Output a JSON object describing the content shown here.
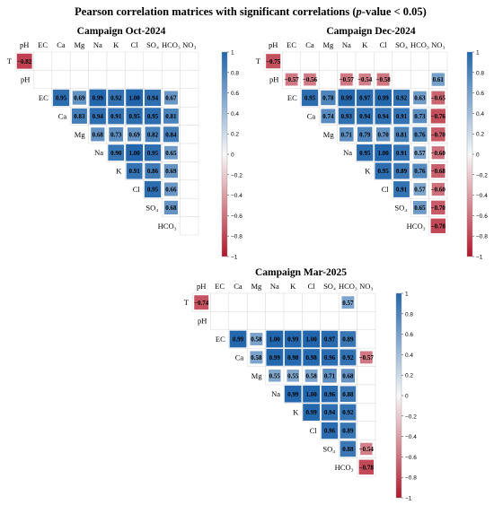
{
  "figure": {
    "title": "Pearson correlation matrices with significant correlations (p-value < 0.05)",
    "title_parts": [
      "Pearson correlation matrices with significant correlations (",
      "p",
      "-value < 0.05)"
    ]
  },
  "colors": {
    "positive_max": "#2166ac",
    "midpoint": "#f7f7f7",
    "negative_max": "#b2182b",
    "grid": "#d9d9d9"
  },
  "chart_data": [
    {
      "type": "heatmap",
      "title": "Campaign Oct-2024",
      "variables": [
        "T",
        "pH",
        "EC",
        "Ca",
        "Mg",
        "Na",
        "K",
        "Cl",
        "SO4",
        "HCO3",
        "NO3"
      ],
      "variable_labels": [
        "T",
        "pH",
        "EC",
        "Ca",
        "Mg",
        "Na",
        "K",
        "Cl",
        "SO₄",
        "HCO₃",
        "NO₃"
      ],
      "colorbar": {
        "min": -1,
        "max": 1,
        "ticks": [
          1,
          0.8,
          0.6,
          0.4,
          0.2,
          0,
          -0.2,
          -0.4,
          -0.6,
          -0.8,
          -1
        ]
      },
      "cells": [
        [
          0,
          1,
          -0.82
        ],
        [
          2,
          3,
          0.95
        ],
        [
          2,
          4,
          0.69
        ],
        [
          2,
          5,
          0.99
        ],
        [
          2,
          6,
          0.92
        ],
        [
          2,
          7,
          1.0
        ],
        [
          2,
          8,
          0.94
        ],
        [
          2,
          9,
          0.67
        ],
        [
          3,
          4,
          0.83
        ],
        [
          3,
          5,
          0.94
        ],
        [
          3,
          6,
          0.91
        ],
        [
          3,
          7,
          0.95
        ],
        [
          3,
          8,
          0.95
        ],
        [
          3,
          9,
          0.81
        ],
        [
          4,
          5,
          0.68
        ],
        [
          4,
          6,
          0.73
        ],
        [
          4,
          7,
          0.69
        ],
        [
          4,
          8,
          0.82
        ],
        [
          4,
          9,
          0.84
        ],
        [
          5,
          6,
          0.9
        ],
        [
          5,
          7,
          1.0
        ],
        [
          5,
          8,
          0.95
        ],
        [
          5,
          9,
          0.65
        ],
        [
          6,
          7,
          0.91
        ],
        [
          6,
          8,
          0.86
        ],
        [
          6,
          9,
          0.69
        ],
        [
          7,
          8,
          0.95
        ],
        [
          7,
          9,
          0.66
        ],
        [
          8,
          9,
          0.68
        ]
      ]
    },
    {
      "type": "heatmap",
      "title": "Campaign Dec-2024",
      "variables": [
        "T",
        "pH",
        "EC",
        "Ca",
        "Mg",
        "Na",
        "K",
        "Cl",
        "SO4",
        "HCO3",
        "NO3"
      ],
      "variable_labels": [
        "T",
        "pH",
        "EC",
        "Ca",
        "Mg",
        "Na",
        "K",
        "Cl",
        "SO₄",
        "HCO₃",
        "NO₃"
      ],
      "colorbar": {
        "min": -1,
        "max": 1,
        "ticks": [
          1,
          0.8,
          0.6,
          0.4,
          0.2,
          0,
          -0.2,
          -0.4,
          -0.6,
          -0.8,
          -1
        ]
      },
      "cells": [
        [
          0,
          1,
          -0.75
        ],
        [
          1,
          2,
          -0.57
        ],
        [
          1,
          3,
          -0.56
        ],
        [
          1,
          5,
          -0.57
        ],
        [
          1,
          6,
          -0.54
        ],
        [
          1,
          7,
          -0.58
        ],
        [
          1,
          10,
          0.61
        ],
        [
          2,
          3,
          0.95
        ],
        [
          2,
          4,
          0.78
        ],
        [
          2,
          5,
          0.99
        ],
        [
          2,
          6,
          0.97
        ],
        [
          2,
          7,
          0.99
        ],
        [
          2,
          8,
          0.92
        ],
        [
          2,
          9,
          0.63
        ],
        [
          2,
          10,
          -0.65
        ],
        [
          3,
          4,
          0.74
        ],
        [
          3,
          5,
          0.93
        ],
        [
          3,
          6,
          0.94
        ],
        [
          3,
          7,
          0.94
        ],
        [
          3,
          8,
          0.91
        ],
        [
          3,
          9,
          0.73
        ],
        [
          3,
          10,
          -0.76
        ],
        [
          4,
          5,
          0.71
        ],
        [
          4,
          6,
          0.79
        ],
        [
          4,
          7,
          0.7
        ],
        [
          4,
          8,
          0.81
        ],
        [
          4,
          9,
          0.76
        ],
        [
          4,
          10,
          -0.7
        ],
        [
          5,
          6,
          0.95
        ],
        [
          5,
          7,
          1.0
        ],
        [
          5,
          8,
          0.91
        ],
        [
          5,
          9,
          0.57
        ],
        [
          5,
          10,
          -0.6
        ],
        [
          6,
          7,
          0.95
        ],
        [
          6,
          8,
          0.89
        ],
        [
          6,
          9,
          0.76
        ],
        [
          6,
          10,
          -0.68
        ],
        [
          7,
          8,
          0.91
        ],
        [
          7,
          9,
          0.57
        ],
        [
          7,
          10,
          -0.6
        ],
        [
          8,
          9,
          0.65
        ],
        [
          8,
          10,
          -0.7
        ],
        [
          9,
          10,
          -0.78
        ]
      ]
    },
    {
      "type": "heatmap",
      "title": "Campaign Mar-2025",
      "variables": [
        "T",
        "pH",
        "EC",
        "Ca",
        "Mg",
        "Na",
        "K",
        "Cl",
        "SO4",
        "HCO3",
        "NO3"
      ],
      "variable_labels": [
        "T",
        "pH",
        "EC",
        "Ca",
        "Mg",
        "Na",
        "K",
        "Cl",
        "SO₄",
        "HCO₃",
        "NO₃"
      ],
      "colorbar": {
        "min": -1,
        "max": 1,
        "ticks": [
          1,
          0.8,
          0.6,
          0.4,
          0.2,
          0,
          -0.2,
          -0.4,
          -0.6,
          -0.8,
          -1
        ]
      },
      "cells": [
        [
          0,
          1,
          -0.74
        ],
        [
          0,
          9,
          0.57
        ],
        [
          2,
          3,
          0.99
        ],
        [
          2,
          4,
          0.58
        ],
        [
          2,
          5,
          1.0
        ],
        [
          2,
          6,
          0.99
        ],
        [
          2,
          7,
          1.0
        ],
        [
          2,
          8,
          0.97
        ],
        [
          2,
          9,
          0.89
        ],
        [
          3,
          4,
          0.58
        ],
        [
          3,
          5,
          0.99
        ],
        [
          3,
          6,
          0.98
        ],
        [
          3,
          7,
          0.98
        ],
        [
          3,
          8,
          0.96
        ],
        [
          3,
          9,
          0.92
        ],
        [
          3,
          10,
          -0.57
        ],
        [
          4,
          5,
          0.55
        ],
        [
          4,
          6,
          0.55
        ],
        [
          4,
          7,
          0.58
        ],
        [
          4,
          8,
          0.71
        ],
        [
          4,
          9,
          0.68
        ],
        [
          5,
          6,
          0.99
        ],
        [
          5,
          7,
          1.0
        ],
        [
          5,
          8,
          0.96
        ],
        [
          5,
          9,
          0.88
        ],
        [
          6,
          7,
          0.99
        ],
        [
          6,
          8,
          0.94
        ],
        [
          6,
          9,
          0.92
        ],
        [
          7,
          8,
          0.96
        ],
        [
          7,
          9,
          0.89
        ],
        [
          8,
          9,
          0.88
        ],
        [
          8,
          10,
          -0.54
        ],
        [
          9,
          10,
          -0.78
        ]
      ]
    }
  ]
}
